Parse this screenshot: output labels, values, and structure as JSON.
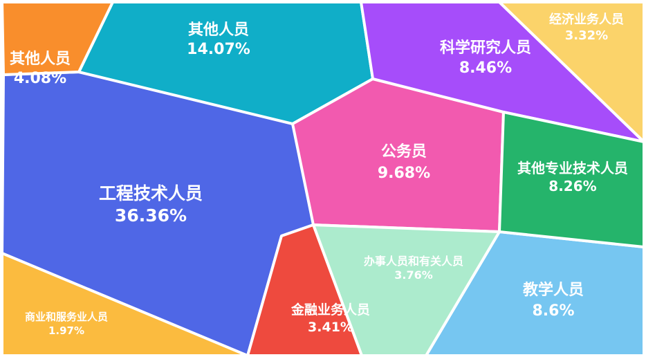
{
  "chart_data": {
    "type": "voronoi-treemap",
    "title": "",
    "unit": "%",
    "cells": [
      {
        "name": "工程技术人员",
        "value": 36.36,
        "value_label": "36.36%",
        "color": "#4f67e6"
      },
      {
        "name": "其他人员",
        "value": 14.07,
        "value_label": "14.07%",
        "color": "#10aec8"
      },
      {
        "name": "公务员",
        "value": 9.68,
        "value_label": "9.68%",
        "color": "#f25aaf"
      },
      {
        "name": "教学人员",
        "value": 8.6,
        "value_label": "8.6%",
        "color": "#76c6f1"
      },
      {
        "name": "科学研究人员",
        "value": 8.46,
        "value_label": "8.46%",
        "color": "#a64dfa"
      },
      {
        "name": "其他专业技术人员",
        "value": 8.26,
        "value_label": "8.26%",
        "color": "#25b46b"
      },
      {
        "name": "其他人员",
        "value": 4.08,
        "value_label": "4.08%",
        "color": "#f98e2c"
      },
      {
        "name": "办事人员和有关人员",
        "value": 3.76,
        "value_label": "3.76%",
        "color": "#acebcd"
      },
      {
        "name": "金融业务人员",
        "value": 3.41,
        "value_label": "3.41%",
        "color": "#ee4a3e"
      },
      {
        "name": "经济业务人员",
        "value": 3.32,
        "value_label": "3.32%",
        "color": "#fbd36a"
      },
      {
        "name": "商业和服务业人员",
        "value": 1.97,
        "value_label": "1.97%",
        "color": "#fbbb3f"
      }
    ]
  }
}
